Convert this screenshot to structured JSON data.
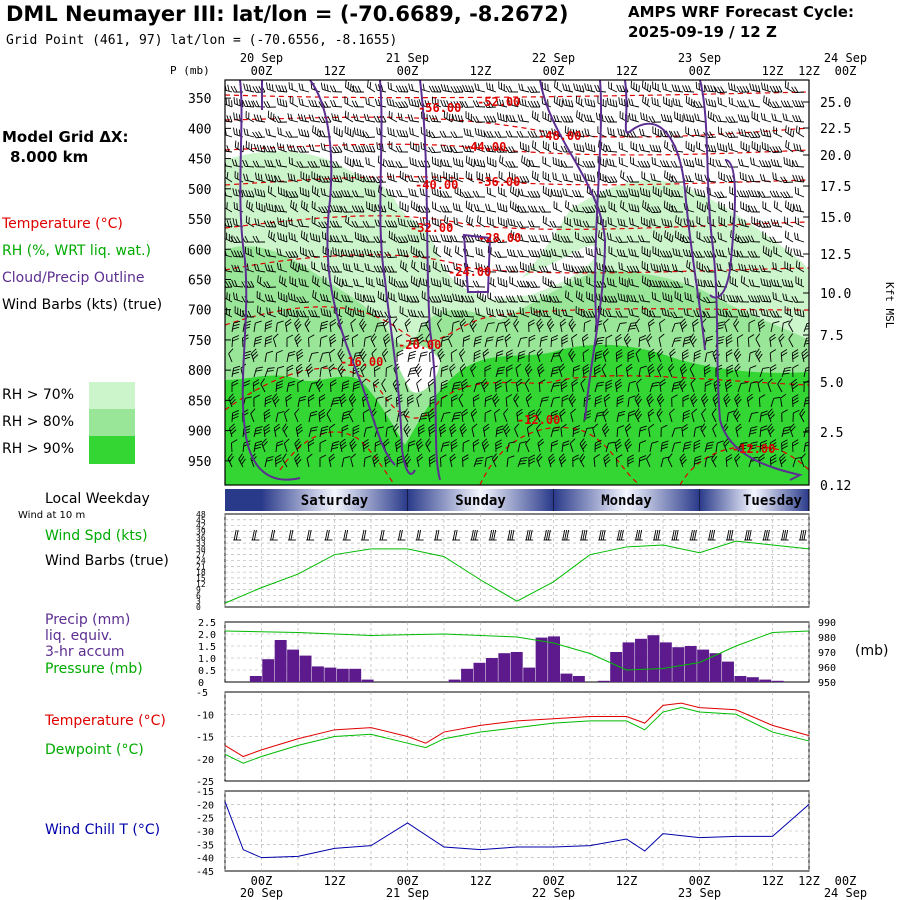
{
  "header": {
    "title": "DML Neumayer III:  lat/lon = (-70.6689, -8.2672)",
    "subtitle": "Grid Point (461, 97) lat/lon = (-70.6556, -8.1655)",
    "forecast_line1": "AMPS WRF Forecast Cycle:",
    "forecast_line2": "2025-09-19 / 12  Z"
  },
  "legend": {
    "grid_label_1": "Model Grid ΔX:",
    "grid_label_2": "8.000 km",
    "temperature": "Temperature (°C)",
    "rh": "RH (%, WRT liq. wat.)",
    "cloud": "Cloud/Precip Outline",
    "wind_barbs": "Wind Barbs (kts) (true)",
    "rh70": "RH > 70%",
    "rh80": "RH > 80%",
    "rh90": "RH > 90%",
    "local_weekday": "Local Weekday",
    "wind_at_10m": "Wind at 10 m",
    "wind_spd": "Wind Spd (kts)",
    "wind_barbs_true": "Wind Barbs (true)",
    "precip_1": "Precip (mm)",
    "precip_2": "liq. equiv.",
    "precip_3": "3-hr accum",
    "pressure": "Pressure (mb)",
    "pressure_unit": "(mb)",
    "temperature2": "Temperature (°C)",
    "dewpoint": "Dewpoint (°C)",
    "windchill": "Wind Chill T (°C)"
  },
  "colors": {
    "red": "#e00000",
    "green": "#00bb00",
    "purple": "#5c2e91",
    "blue": "#0000aa",
    "rh70": "#ccf5cc",
    "rh80": "#99e699",
    "rh90": "#33d633",
    "precip_bar": "#5c1a8c"
  },
  "chart_data": [
    {
      "type": "heatmap",
      "title": "Time-height cross section",
      "ylabel": "P (mb)",
      "ylabel_right": "Kft MSL",
      "time_ticks": [
        "00Z",
        "12Z",
        "00Z",
        "12Z",
        "00Z",
        "12Z",
        "00Z",
        "12Z",
        "00Z",
        "12Z"
      ],
      "date_ticks": [
        "20 Sep",
        "21 Sep",
        "22 Sep",
        "23 Sep",
        "24 Sep"
      ],
      "pressure_ticks": [
        350,
        400,
        450,
        500,
        550,
        600,
        650,
        700,
        750,
        800,
        850,
        900,
        950
      ],
      "height_ticks": [
        "25.0",
        "22.5",
        "20.0",
        "17.5",
        "15.0",
        "12.5",
        "10.0",
        "7.5",
        "5.0",
        "2.5",
        "0.12"
      ],
      "temperature_labels": [
        "-56.00",
        "-52.00",
        "-48.00",
        "-44.00",
        "-40.00",
        "-36.00",
        "-32.00",
        "-28.00",
        "-24.00",
        "-20.00",
        "-16.00",
        "-12.00",
        "-12.00"
      ]
    },
    {
      "type": "table",
      "title": "Local Weekday",
      "weekdays": [
        "Friday",
        "Saturday",
        "Sunday",
        "Monday",
        "Tuesday",
        "Wednesday"
      ],
      "weekday_labels": [
        "ay",
        "Saturday",
        "Sunday",
        "Monday",
        "Tuesday",
        "Wedn"
      ]
    },
    {
      "type": "line",
      "title": "Wind Spd (kts)",
      "ylim": [
        0,
        48
      ],
      "yticks": [
        "0",
        "3",
        "6",
        "9",
        "12",
        "15",
        "18",
        "21",
        "24",
        "27",
        "30",
        "33",
        "36",
        "39",
        "42",
        "45",
        "48"
      ],
      "x_hours": [
        0,
        6,
        12,
        18,
        24,
        30,
        36,
        42,
        48,
        54,
        60,
        66,
        72,
        78,
        84,
        90,
        96
      ],
      "values": [
        2,
        10,
        17,
        27,
        30,
        30,
        26,
        14,
        3,
        13,
        27,
        31,
        32,
        28,
        34,
        32,
        30
      ]
    },
    {
      "type": "bar",
      "title": "Precip (mm) liq. equiv. 3-hr accum / Pressure (mb)",
      "ylim": [
        0,
        2.5
      ],
      "yticks": [
        "0",
        "0.5",
        "1.0",
        "1.5",
        "2.0",
        "2.5"
      ],
      "y2lim": [
        950,
        990
      ],
      "y2ticks": [
        "950",
        "960",
        "970",
        "980",
        "990"
      ],
      "precip_values": [
        0,
        0,
        0.25,
        0.95,
        1.75,
        1.35,
        1.1,
        0.65,
        0.6,
        0.55,
        0.55,
        0.1,
        0,
        0,
        0,
        0,
        0,
        0,
        0.1,
        0.55,
        0.8,
        1.0,
        1.2,
        1.25,
        0.6,
        1.85,
        1.9,
        0.35,
        0.25,
        0,
        0.05,
        1.25,
        1.65,
        1.8,
        1.95,
        1.65,
        1.45,
        1.5,
        1.35,
        1.2,
        0.85,
        0.25,
        0.2,
        0.1,
        0.05,
        0,
        0
      ],
      "pressure_x_hours": [
        0,
        12,
        24,
        36,
        48,
        54,
        60,
        66,
        72,
        78,
        84,
        90,
        96
      ],
      "pressure_values": [
        984,
        983,
        981,
        982,
        980,
        976,
        969,
        958,
        959,
        963,
        974,
        983,
        984
      ]
    },
    {
      "type": "line",
      "title": "Temperature / Dewpoint (°C)",
      "ylim": [
        -25,
        -5
      ],
      "yticks": [
        "-5",
        "-10",
        "-15",
        "-20",
        "-25"
      ],
      "series": [
        {
          "name": "Temperature",
          "x_hours": [
            0,
            3,
            6,
            12,
            18,
            24,
            30,
            33,
            36,
            42,
            48,
            54,
            60,
            66,
            69,
            72,
            75,
            78,
            84,
            90,
            96
          ],
          "values": [
            -17,
            -19.5,
            -18,
            -15.5,
            -13.5,
            -13,
            -15,
            -16.5,
            -14,
            -12.5,
            -11.5,
            -11,
            -10.5,
            -10.5,
            -12,
            -8,
            -7.5,
            -8.5,
            -9,
            -12.5,
            -14.8
          ]
        },
        {
          "name": "Dewpoint",
          "x_hours": [
            0,
            3,
            6,
            12,
            18,
            24,
            30,
            33,
            36,
            42,
            48,
            54,
            60,
            66,
            69,
            72,
            75,
            78,
            84,
            90,
            96
          ],
          "values": [
            -19,
            -21,
            -19.5,
            -17,
            -15,
            -14.5,
            -16.5,
            -17.5,
            -15.5,
            -14,
            -13,
            -12,
            -11.5,
            -11.5,
            -13.5,
            -9.5,
            -8.5,
            -9.5,
            -10,
            -14,
            -16
          ]
        }
      ]
    },
    {
      "type": "line",
      "title": "Wind Chill T (°C)",
      "ylim": [
        -45,
        -15
      ],
      "yticks": [
        "-15",
        "-20",
        "-25",
        "-30",
        "-35",
        "-40",
        "-45"
      ],
      "x_hours": [
        0,
        3,
        6,
        12,
        18,
        24,
        30,
        36,
        42,
        48,
        54,
        60,
        66,
        69,
        72,
        78,
        84,
        90,
        96
      ],
      "values": [
        -19,
        -37,
        -40,
        -39.5,
        -36.5,
        -35.5,
        -27,
        -36,
        -37,
        -36,
        -36,
        -35.5,
        -33,
        -37.5,
        -31,
        -32.5,
        -32,
        -32,
        -20
      ]
    }
  ]
}
